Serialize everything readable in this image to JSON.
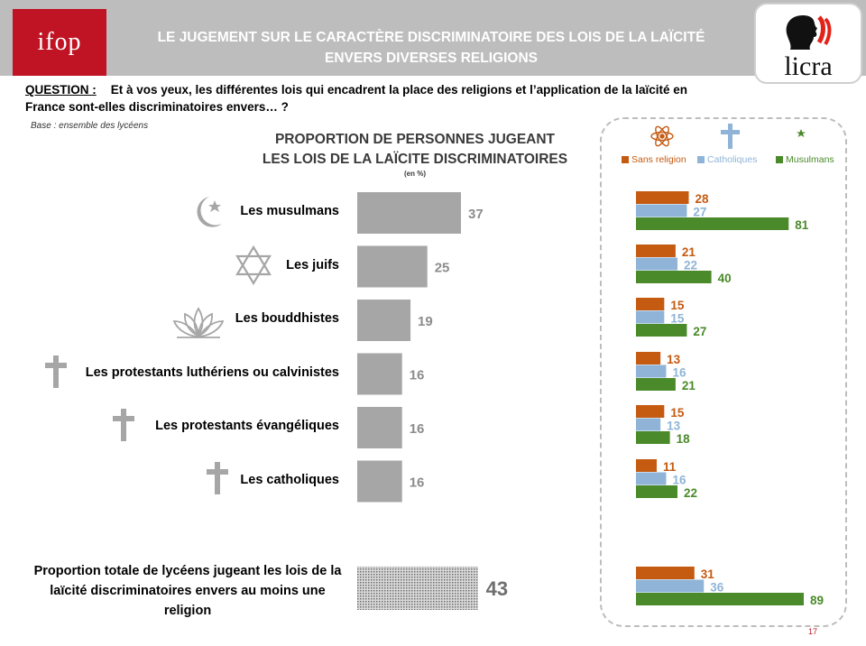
{
  "header": {
    "logo_left": "ifop",
    "title_line1": "LE JUGEMENT SUR LE CARACTÈRE DISCRIMINATOIRE DES LOIS DE LA LAÏCITÉ",
    "title_line2": "ENVERS DIVERSES RELIGIONS",
    "logo_right": "licra"
  },
  "question": {
    "label": "QUESTION :",
    "text": "Et à vos yeux, les différentes lois qui encadrent la place des religions et l’application de la laïcité en France sont-elles discriminatoires envers… ?"
  },
  "base": "Base : ensemble des lycéens",
  "colors": {
    "sans_religion": "#c55a11",
    "catholiques": "#8fb4d8",
    "musulmans": "#4a8a2a",
    "main_bar": "#a6a6a6",
    "value_text": "#8c8c8c",
    "brand_red": "#c01424"
  },
  "icons": {
    "musulmans": "crescent-star-icon",
    "juifs": "star-of-david-icon",
    "bouddhistes": "lotus-icon",
    "protestants_lutheriens": "cross-icon",
    "protestants_evangeliques": "cross-icon",
    "catholiques": "cross-icon",
    "legend_sans_religion": "atom-icon",
    "legend_catholiques": "cross-icon",
    "legend_musulmans": "crescent-star-icon"
  },
  "chart_data": {
    "type": "bar",
    "title_line1": "PROPORTION DE PERSONNES JUGEANT",
    "title_line2": "LES LOIS DE LA LAÏCITE DISCRIMINATOIRES",
    "unit": "(en %)",
    "categories": [
      "Les musulmans",
      "Les juifs",
      "Les bouddhistes",
      "Les protestants luthériens ou calvinistes",
      "Les protestants évangéliques",
      "Les catholiques"
    ],
    "values": [
      37,
      25,
      19,
      16,
      16,
      16
    ],
    "total": {
      "label": "Proportion totale de lycéens jugeant les lois de la laïcité discriminatoires envers au moins une religion",
      "value": 43
    },
    "breakdown": {
      "legend": [
        "Sans religion",
        "Catholiques",
        "Musulmans"
      ],
      "series": [
        {
          "name": "Sans religion",
          "values": [
            28,
            21,
            15,
            13,
            15,
            11
          ],
          "total": 31
        },
        {
          "name": "Catholiques",
          "values": [
            27,
            22,
            15,
            16,
            13,
            16
          ],
          "total": 36
        },
        {
          "name": "Musulmans",
          "values": [
            81,
            40,
            27,
            21,
            18,
            22
          ],
          "total": 89
        }
      ]
    }
  },
  "page_number": "17"
}
